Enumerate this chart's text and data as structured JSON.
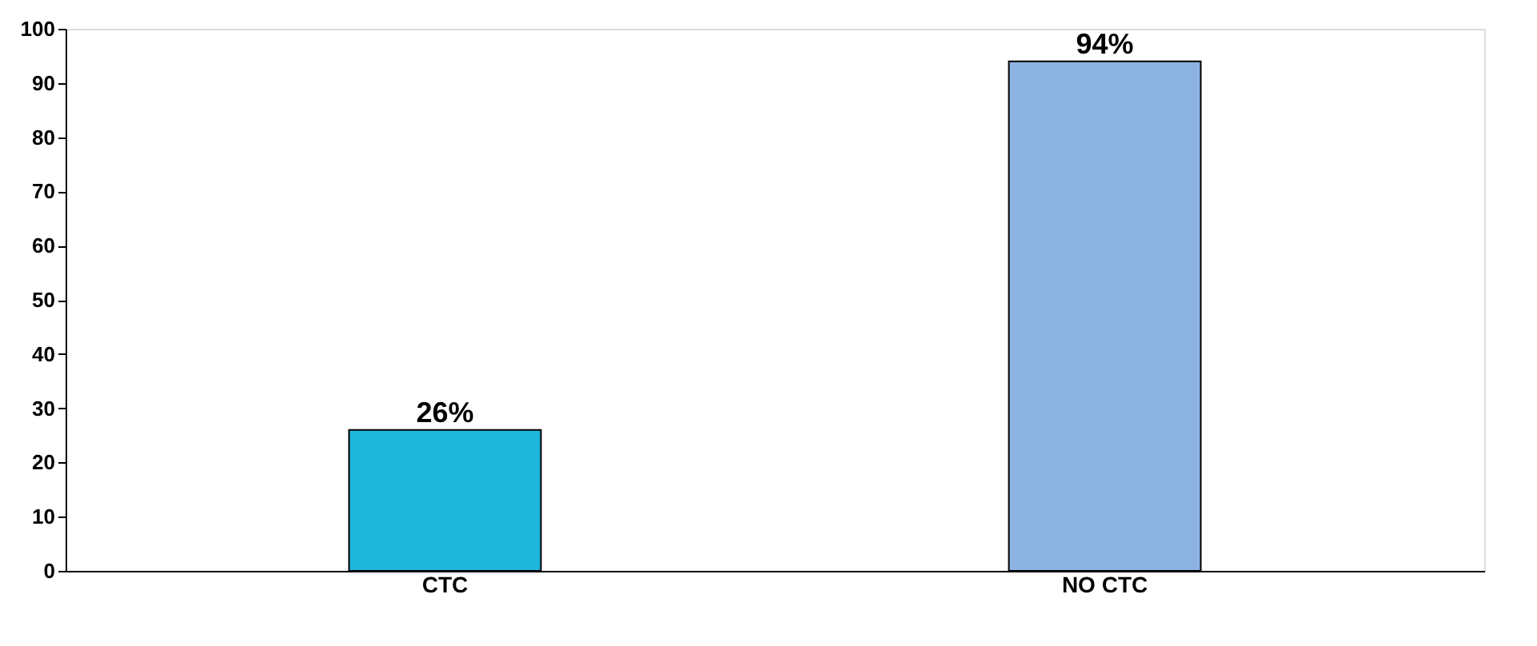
{
  "chart_data": {
    "type": "bar",
    "categories": [
      "CTC",
      "NO CTC"
    ],
    "values": [
      26,
      94
    ],
    "colors": [
      "#1fb6dc",
      "#8db3e2"
    ],
    "value_labels": [
      "26%",
      "94%"
    ],
    "ylim": [
      0,
      100
    ],
    "yticks": [
      0,
      10,
      20,
      30,
      40,
      50,
      60,
      70,
      80,
      90,
      100
    ],
    "grid": false
  }
}
